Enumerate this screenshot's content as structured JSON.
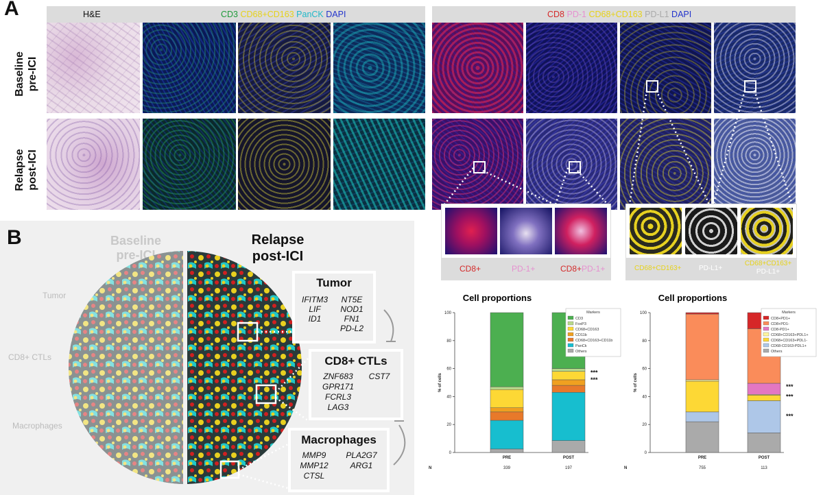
{
  "panel_a": {
    "letter": "A",
    "left_header": {
      "he": "H&E",
      "cd3": "CD3",
      "cd68": "CD68+CD163",
      "panck": "PanCK",
      "dapi": "DAPI"
    },
    "right_header": {
      "cd8": "CD8",
      "pd1": "PD-1",
      "cd68": "CD68+CD163",
      "pdl1": "PD-L1",
      "dapi": "DAPI"
    },
    "rows": [
      {
        "line1": "Baseline",
        "line2": "pre-ICI"
      },
      {
        "line1": "Relapse",
        "line2": "post-ICI"
      }
    ],
    "zoom_labels_left": [
      {
        "text": "CD8+",
        "color": "#d42a2a"
      },
      {
        "text": "PD-1+",
        "color": "#e690d0"
      },
      {
        "text1": "CD8+",
        "text2": "PD-1+"
      }
    ],
    "zoom_labels_right": [
      {
        "text": "CD68+CD163+"
      },
      {
        "text": "PD-L1+"
      },
      {
        "line1": "CD68+CD163+",
        "line2": "PD-L1+"
      }
    ]
  },
  "panel_b": {
    "letter": "B",
    "baseline": {
      "line1": "Baseline",
      "line2": "pre-ICI"
    },
    "relapse": {
      "line1": "Relapse",
      "line2": "post-ICI"
    },
    "side_labels": [
      "Tumor",
      "CD8+ CTLs",
      "Macrophages"
    ],
    "boxes": [
      {
        "title": "Tumor",
        "col1": [
          "IFITM3",
          "LIF",
          "ID1"
        ],
        "col2": [
          "NT5E",
          "NOD1",
          "FN1",
          "PD-L2"
        ]
      },
      {
        "title": "CD8+ CTLs",
        "col1": [
          "ZNF683",
          "GPR171",
          "FCRL3",
          "LAG3"
        ],
        "col2": [
          "CST7"
        ]
      },
      {
        "title": "Macrophages",
        "col1": [
          "MMP9",
          "MMP12",
          "CTSL"
        ],
        "col2": [
          "PLA2G7",
          "ARG1"
        ]
      }
    ]
  },
  "chart_data": [
    {
      "type": "bar",
      "stacked": true,
      "title": "Cell proportions",
      "ylabel": "% of cells",
      "ylim": [
        0,
        100
      ],
      "yticks": [
        0,
        20,
        40,
        60,
        80,
        100
      ],
      "categories": [
        "PRE",
        "POST"
      ],
      "n_label": "N",
      "n_values": [
        "339",
        "197"
      ],
      "legend_title": "Markers",
      "series": [
        {
          "name": "Others",
          "color": "#aaaaaa",
          "values": [
            2.5,
            8.5
          ]
        },
        {
          "name": "PanCk",
          "color": "#17becf",
          "values": [
            20.5,
            34.5
          ]
        },
        {
          "name": "CD68+CD163+CD11b",
          "color": "#e8792a",
          "values": [
            6,
            5
          ]
        },
        {
          "name": "CD11b",
          "color": "#f0a020",
          "values": [
            3,
            4
          ]
        },
        {
          "name": "CD68+CD163",
          "color": "#fdd835",
          "values": [
            13,
            6
          ]
        },
        {
          "name": "FoxP3",
          "color": "#b8d98a",
          "values": [
            2,
            2
          ]
        },
        {
          "name": "CD3",
          "color": "#4caf50",
          "values": [
            53,
            40
          ]
        }
      ],
      "legend_order": [
        "CD3",
        "FoxP3",
        "CD68+CD163",
        "CD11b",
        "CD68+CD163+CD11b",
        "PanCk",
        "Others"
      ],
      "annotations": [
        {
          "text": "***",
          "y": 80
        },
        {
          "text": "***",
          "y": 57
        },
        {
          "text": "***",
          "y": 52
        }
      ]
    },
    {
      "type": "bar",
      "stacked": true,
      "title": "Cell proportions",
      "ylabel": "% of cells",
      "ylim": [
        0,
        100
      ],
      "yticks": [
        0,
        20,
        40,
        60,
        80,
        100
      ],
      "categories": [
        "PRE",
        "POST"
      ],
      "n_label": "N",
      "n_values": [
        "755",
        "113"
      ],
      "legend_title": "Markers",
      "series": [
        {
          "name": "Others",
          "color": "#aaaaaa",
          "values": [
            22,
            14
          ]
        },
        {
          "name": "CD68-CD163-PDL1+",
          "color": "#aec7e8",
          "values": [
            7,
            23
          ]
        },
        {
          "name": "CD68+CD163+PDL1-",
          "color": "#fdd835",
          "values": [
            22,
            4
          ]
        },
        {
          "name": "CD68+CD163+PDL1+",
          "color": "#fff59d",
          "values": [
            1,
            0.5
          ]
        },
        {
          "name": "CD8-PD1+",
          "color": "#e377c2",
          "values": [
            0,
            8
          ]
        },
        {
          "name": "CD8+PD1-",
          "color": "#fa8c5a",
          "values": [
            47,
            39
          ]
        },
        {
          "name": "CD8+PD1+",
          "color": "#d62728",
          "values": [
            1,
            11.5
          ]
        }
      ],
      "legend_order": [
        "CD8+PD1+",
        "CD8+PD1-",
        "CD8-PD1+",
        "CD68+CD163+PDL1+",
        "CD68+CD163+PDL1-",
        "CD68-CD163-PDL1+",
        "Others"
      ],
      "annotations": [
        {
          "text": "***",
          "y": 95
        },
        {
          "text": "*",
          "y": 70
        },
        {
          "text": "***",
          "y": 47
        },
        {
          "text": "***",
          "y": 40
        },
        {
          "text": "***",
          "y": 26
        }
      ]
    }
  ]
}
